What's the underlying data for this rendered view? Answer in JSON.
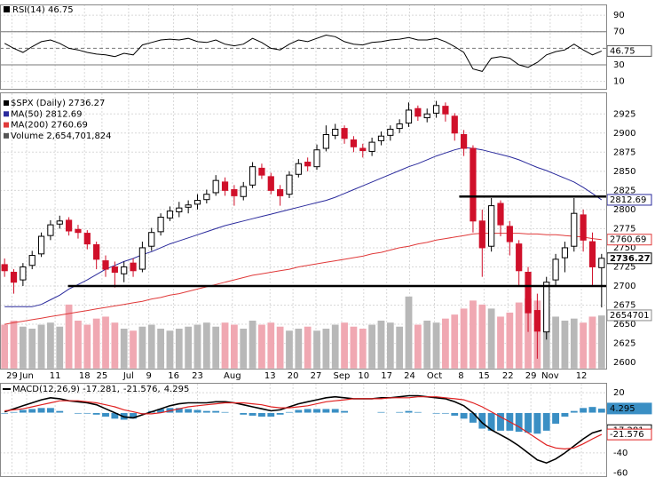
{
  "chart_data": [
    {
      "type": "line",
      "title": "RSI(14) 46.75",
      "series": [
        {
          "color": "#000000",
          "values": [
            56,
            50,
            45,
            52,
            58,
            60,
            56,
            50,
            48,
            45,
            43,
            42,
            40,
            44,
            42,
            54,
            57,
            60,
            61,
            60,
            62,
            58,
            57,
            60,
            55,
            53,
            55,
            62,
            57,
            50,
            48,
            55,
            60,
            58,
            62,
            66,
            64,
            58,
            55,
            54,
            57,
            58,
            60,
            61,
            63,
            60,
            60,
            62,
            58,
            52,
            45,
            25,
            22,
            38,
            40,
            38,
            30,
            27,
            33,
            42,
            46,
            48,
            55,
            48,
            42,
            46.75
          ]
        }
      ],
      "ylim": [
        1,
        103
      ],
      "yticks": [
        90,
        70,
        30,
        10
      ],
      "reference_lines": [
        70,
        30
      ],
      "midline": 50
    },
    {
      "type": "candlestick",
      "ohlc": {
        "name": "$SPX (Daily) 2736.27",
        "up_color": "#000000",
        "down_color": "#d0102a",
        "open": [
          2728,
          2718,
          2708,
          2727,
          2742,
          2766,
          2781,
          2786,
          2774,
          2769,
          2754,
          2733,
          2725,
          2716,
          2730,
          2722,
          2752,
          2771,
          2789,
          2797,
          2803,
          2807,
          2813,
          2822,
          2836,
          2826,
          2817,
          2832,
          2854,
          2843,
          2826,
          2820,
          2846,
          2862,
          2856,
          2880,
          2897,
          2906,
          2891,
          2880,
          2876,
          2890,
          2897,
          2906,
          2913,
          2932,
          2920,
          2926,
          2935,
          2922,
          2898,
          2880,
          2785,
          2752,
          2808,
          2778,
          2755,
          2718,
          2668,
          2640,
          2708,
          2737,
          2752,
          2793,
          2758,
          2724
        ],
        "high": [
          2736,
          2722,
          2730,
          2746,
          2770,
          2786,
          2792,
          2790,
          2780,
          2773,
          2758,
          2740,
          2732,
          2732,
          2736,
          2758,
          2776,
          2795,
          2804,
          2810,
          2812,
          2820,
          2826,
          2845,
          2842,
          2832,
          2836,
          2862,
          2860,
          2848,
          2832,
          2850,
          2866,
          2868,
          2885,
          2910,
          2912,
          2910,
          2896,
          2886,
          2894,
          2902,
          2910,
          2918,
          2940,
          2936,
          2932,
          2942,
          2940,
          2926,
          2904,
          2884,
          2800,
          2815,
          2812,
          2785,
          2760,
          2725,
          2690,
          2712,
          2742,
          2758,
          2815,
          2800,
          2770,
          2742
        ],
        "low": [
          2712,
          2690,
          2700,
          2722,
          2738,
          2760,
          2775,
          2766,
          2762,
          2748,
          2722,
          2712,
          2698,
          2705,
          2712,
          2718,
          2746,
          2766,
          2785,
          2790,
          2795,
          2800,
          2808,
          2818,
          2818,
          2805,
          2812,
          2828,
          2840,
          2820,
          2805,
          2815,
          2842,
          2850,
          2852,
          2876,
          2892,
          2886,
          2875,
          2868,
          2870,
          2884,
          2890,
          2900,
          2908,
          2916,
          2914,
          2920,
          2915,
          2890,
          2870,
          2770,
          2712,
          2745,
          2765,
          2740,
          2700,
          2640,
          2605,
          2630,
          2700,
          2718,
          2745,
          2745,
          2700,
          2672
        ],
        "close": [
          2720,
          2705,
          2725,
          2740,
          2765,
          2780,
          2785,
          2772,
          2770,
          2755,
          2735,
          2722,
          2718,
          2725,
          2720,
          2750,
          2770,
          2790,
          2798,
          2802,
          2806,
          2812,
          2820,
          2838,
          2825,
          2818,
          2830,
          2856,
          2845,
          2825,
          2818,
          2845,
          2860,
          2857,
          2878,
          2898,
          2905,
          2893,
          2882,
          2877,
          2888,
          2896,
          2905,
          2912,
          2930,
          2922,
          2925,
          2936,
          2925,
          2900,
          2880,
          2785,
          2750,
          2805,
          2780,
          2758,
          2720,
          2665,
          2641,
          2705,
          2735,
          2750,
          2795,
          2760,
          2725,
          2736.27
        ]
      },
      "series": [
        {
          "name": "MA(50) 2812.69",
          "color": "#2a2a9c",
          "values": [
            2673,
            2673,
            2673,
            2673,
            2676,
            2682,
            2688,
            2696,
            2702,
            2708,
            2715,
            2722,
            2727,
            2732,
            2736,
            2741,
            2745,
            2750,
            2755,
            2759,
            2763,
            2767,
            2771,
            2775,
            2779,
            2782,
            2785,
            2788,
            2791,
            2794,
            2797,
            2800,
            2803,
            2806,
            2809,
            2812,
            2816,
            2821,
            2826,
            2831,
            2836,
            2841,
            2846,
            2851,
            2856,
            2860,
            2865,
            2870,
            2874,
            2878,
            2881,
            2880,
            2878,
            2875,
            2872,
            2869,
            2865,
            2860,
            2855,
            2851,
            2846,
            2841,
            2836,
            2829,
            2821,
            2812.69
          ]
        },
        {
          "name": "MA(200) 2760.69",
          "color": "#e03a3a",
          "values": [
            2650,
            2652,
            2654,
            2656,
            2658,
            2660,
            2662,
            2664,
            2666,
            2668,
            2670,
            2672,
            2674,
            2676,
            2678,
            2680,
            2683,
            2685,
            2688,
            2690,
            2693,
            2696,
            2699,
            2702,
            2705,
            2708,
            2711,
            2714,
            2716,
            2718,
            2720,
            2722,
            2725,
            2727,
            2729,
            2731,
            2733,
            2735,
            2737,
            2739,
            2742,
            2744,
            2747,
            2750,
            2752,
            2755,
            2757,
            2760,
            2762,
            2764,
            2766,
            2768,
            2769,
            2769,
            2769,
            2769,
            2769,
            2768,
            2768,
            2767,
            2767,
            2766,
            2765,
            2764,
            2762,
            2760.69
          ]
        }
      ],
      "volume": {
        "name": "Volume 2,654,701,824",
        "label": "2654701",
        "ylim": [
          0,
          13700000000.0
        ],
        "up_color": "#b8b8b8",
        "down_color": "#f0a8b2",
        "values": [
          2200000000.0,
          2400000000.0,
          2100000000.0,
          2000000000.0,
          2200000000.0,
          2300000000.0,
          2100000000.0,
          3200000000.0,
          2400000000.0,
          2200000000.0,
          2500000000.0,
          2600000000.0,
          2300000000.0,
          2000000000.0,
          1900000000.0,
          2100000000.0,
          2200000000.0,
          2000000000.0,
          1900000000.0,
          2000000000.0,
          2100000000.0,
          2200000000.0,
          2300000000.0,
          2100000000.0,
          2300000000.0,
          2200000000.0,
          2000000000.0,
          2400000000.0,
          2200000000.0,
          2300000000.0,
          2100000000.0,
          1900000000.0,
          2000000000.0,
          2100000000.0,
          1900000000.0,
          2000000000.0,
          2200000000.0,
          2300000000.0,
          2100000000.0,
          2000000000.0,
          2200000000.0,
          2400000000.0,
          2300000000.0,
          2100000000.0,
          3600000000.0,
          2200000000.0,
          2400000000.0,
          2300000000.0,
          2500000000.0,
          2700000000.0,
          3000000000.0,
          3400000000.0,
          3200000000.0,
          3000000000.0,
          2600000000.0,
          2800000000.0,
          3300000000.0,
          3500000000.0,
          3400000000.0,
          3000000000.0,
          2600000000.0,
          2400000000.0,
          2500000000.0,
          2300000000.0,
          2600000000.0,
          2654701824
        ]
      },
      "annotations": [
        {
          "y": 2817,
          "x": [
            49.5,
            65.5
          ]
        },
        {
          "y": 2700,
          "x": [
            6.9,
            65.5
          ]
        }
      ],
      "ylim": [
        2592,
        2952
      ],
      "yticks": [
        2600,
        2625,
        2650,
        2675,
        2700,
        2725,
        2750,
        2775,
        2800,
        2825,
        2850,
        2875,
        2900,
        2925
      ],
      "xlim": [
        -0.5,
        65.5
      ],
      "xticks": [
        {
          "value": 0.8,
          "label": "29"
        },
        {
          "value": 2.4,
          "label": "Jun"
        },
        {
          "value": 5.5,
          "label": "11"
        },
        {
          "value": 8.7,
          "label": "18"
        },
        {
          "value": 10.6,
          "label": "25"
        },
        {
          "value": 13.5,
          "label": "Jul"
        },
        {
          "value": 15.7,
          "label": "9"
        },
        {
          "value": 18.4,
          "label": "16"
        },
        {
          "value": 21,
          "label": "23"
        },
        {
          "value": 24.8,
          "label": "Aug"
        },
        {
          "value": 28.9,
          "label": "13"
        },
        {
          "value": 31.4,
          "label": "20"
        },
        {
          "value": 33.9,
          "label": "27"
        },
        {
          "value": 36.7,
          "label": "Sep"
        },
        {
          "value": 39.1,
          "label": "10"
        },
        {
          "value": 41.6,
          "label": "17"
        },
        {
          "value": 44.1,
          "label": "24"
        },
        {
          "value": 46.8,
          "label": "Oct"
        },
        {
          "value": 49.7,
          "label": "8"
        },
        {
          "value": 52.2,
          "label": "15"
        },
        {
          "value": 54.8,
          "label": "22"
        },
        {
          "value": 57.3,
          "label": "29"
        },
        {
          "value": 59.4,
          "label": "Nov"
        },
        {
          "value": 62.8,
          "label": "12"
        }
      ]
    },
    {
      "type": "macd",
      "title": [
        "MACD(12,26,9) -17.281,",
        "-21.576,",
        "4.295"
      ],
      "series": [
        {
          "color": "#000000",
          "values": [
            1,
            4,
            7,
            10,
            13,
            15,
            14,
            12,
            11,
            10,
            8,
            4,
            0,
            -4,
            -5,
            -2,
            1,
            4,
            7,
            9,
            10,
            10,
            10,
            11,
            11,
            10,
            8,
            6,
            4,
            2,
            3,
            6,
            9,
            11,
            13,
            15,
            16,
            15,
            14,
            14,
            14,
            15,
            15,
            16,
            17,
            17,
            16,
            15,
            14,
            11,
            7,
            0,
            -10,
            -17,
            -22,
            -27,
            -33,
            -40,
            -47,
            -50,
            -46,
            -40,
            -33,
            -26,
            -20,
            -17.281
          ]
        },
        {
          "color": "#e02020",
          "values": [
            2,
            3,
            4,
            6,
            8,
            10,
            12,
            12,
            12,
            11,
            10,
            8,
            6,
            3,
            1,
            -1,
            -1,
            0,
            2,
            4,
            6,
            7,
            8,
            9,
            10,
            10,
            10,
            9,
            8,
            6,
            5,
            5,
            6,
            7,
            9,
            11,
            12,
            13,
            14,
            14,
            14,
            14,
            15,
            15,
            15,
            16,
            16,
            16,
            15,
            14,
            13,
            10,
            6,
            1,
            -4,
            -9,
            -14,
            -20,
            -26,
            -32,
            -35,
            -36,
            -35,
            -31,
            -26,
            -21.576
          ]
        },
        {
          "color": "#3a8fc4",
          "kind": "bar",
          "values": [
            -1,
            1,
            3,
            4,
            5,
            5,
            2,
            0,
            -1,
            -1,
            -2,
            -4,
            -6,
            -7,
            -6,
            -1,
            2,
            4,
            5,
            5,
            4,
            3,
            2,
            2,
            1,
            0,
            -2,
            -3,
            -4,
            -4,
            -2,
            1,
            3,
            4,
            4,
            4,
            4,
            2,
            0,
            0,
            0,
            1,
            0,
            1,
            2,
            1,
            0,
            -1,
            -1,
            -3,
            -6,
            -10,
            -16,
            -18,
            -18,
            -18,
            -19,
            -20,
            -21,
            -18,
            -11,
            -4,
            2,
            5,
            6,
            4.295
          ]
        }
      ],
      "ylim": [
        -64,
        29
      ],
      "yticks": [
        20,
        -40,
        -60
      ]
    }
  ]
}
